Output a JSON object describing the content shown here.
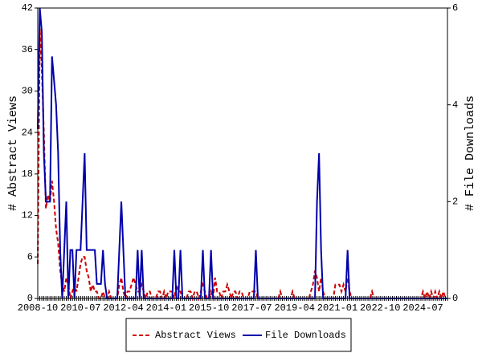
{
  "chart_data": {
    "type": "line",
    "y_label": "# Abstract Views",
    "y2_label": "# File Downloads",
    "categories": [
      "2008-10",
      null,
      null,
      null,
      null,
      null,
      null,
      null,
      null,
      null,
      null,
      null,
      null,
      null,
      null,
      null,
      null,
      null,
      null,
      null,
      null,
      "2010-07",
      null,
      null,
      null,
      null,
      null,
      null,
      null,
      null,
      null,
      null,
      null,
      null,
      null,
      null,
      null,
      null,
      null,
      null,
      null,
      null,
      "2012-04",
      null,
      null,
      null,
      null,
      null,
      null,
      null,
      null,
      null,
      null,
      null,
      null,
      null,
      null,
      null,
      null,
      null,
      null,
      null,
      null,
      "2014-01",
      null,
      null,
      null,
      null,
      null,
      null,
      null,
      null,
      null,
      null,
      null,
      null,
      null,
      null,
      null,
      null,
      null,
      null,
      null,
      null,
      "2015-10",
      null,
      null,
      null,
      null,
      null,
      null,
      null,
      null,
      null,
      null,
      null,
      null,
      null,
      null,
      null,
      null,
      null,
      null,
      null,
      null,
      "2017-07",
      null,
      null,
      null,
      null,
      null,
      null,
      null,
      null,
      null,
      null,
      null,
      null,
      null,
      null,
      null,
      null,
      null,
      null,
      null,
      null,
      "2019-04",
      null,
      null,
      null,
      null,
      null,
      null,
      null,
      null,
      null,
      null,
      null,
      null,
      null,
      null,
      null,
      null,
      null,
      null,
      null,
      null,
      "2021-01",
      null,
      null,
      null,
      null,
      null,
      null,
      null,
      null,
      null,
      null,
      null,
      null,
      null,
      null,
      null,
      null,
      null,
      null,
      null,
      null,
      "2022-10",
      null,
      null,
      null,
      null,
      null,
      null,
      null,
      null,
      null,
      null,
      null,
      null,
      null,
      null,
      null,
      null,
      null,
      null,
      null,
      null,
      "2024-07",
      null,
      null,
      null,
      null,
      null,
      null,
      null,
      null,
      null,
      null,
      null,
      null
    ],
    "series": [
      {
        "name": "Abstract Views",
        "color": "#cc0000",
        "dash": true,
        "values": [
          5,
          39,
          33,
          24,
          13,
          15,
          14,
          17,
          14,
          10,
          8,
          4,
          2,
          1,
          3,
          2,
          0,
          1,
          2,
          1,
          3,
          5,
          6,
          6,
          4,
          3,
          1,
          2,
          1,
          1,
          0,
          0,
          1,
          0,
          0,
          1,
          0,
          0,
          0,
          0,
          2,
          3,
          1,
          0,
          1,
          1,
          2,
          3,
          2,
          1,
          1,
          2,
          1,
          0,
          1,
          1,
          0,
          0,
          0,
          1,
          1,
          0,
          1,
          0,
          1,
          1,
          1,
          0,
          2,
          1,
          1,
          0,
          0,
          0,
          1,
          1,
          0,
          1,
          1,
          0,
          1,
          2,
          1,
          0,
          0,
          1,
          0,
          3,
          1,
          1,
          0,
          1,
          1,
          2,
          1,
          0,
          1,
          1,
          0,
          1,
          1,
          0,
          0,
          0,
          1,
          1,
          1,
          1,
          0,
          0,
          0,
          0,
          0,
          0,
          0,
          0,
          0,
          0,
          0,
          1,
          0,
          0,
          0,
          0,
          0,
          1,
          0,
          0,
          0,
          0,
          0,
          0,
          0,
          0,
          1,
          2,
          4,
          3,
          1,
          3,
          1,
          0,
          0,
          0,
          0,
          0,
          2,
          2,
          2,
          1,
          2,
          1,
          3,
          1,
          0,
          0,
          0,
          0,
          0,
          0,
          0,
          0,
          0,
          0,
          1,
          0,
          0,
          0,
          0,
          0,
          0,
          0,
          0,
          0,
          0,
          0,
          0,
          0,
          0,
          0,
          0,
          0,
          0,
          0,
          0,
          0,
          0,
          0,
          0,
          1,
          0,
          1,
          0,
          1,
          0,
          1,
          0,
          1,
          0,
          1,
          0,
          0
        ]
      },
      {
        "name": "File Downloads",
        "color": "#0000aa",
        "dash": false,
        "axis": "y2",
        "values": [
          3.5,
          6,
          5.5,
          3,
          2,
          2,
          2,
          5,
          4.5,
          4,
          3,
          1,
          0,
          1,
          2,
          0,
          1,
          1,
          0,
          1,
          1,
          1,
          2,
          3,
          1,
          1,
          1,
          1,
          1,
          0.3,
          0.3,
          0.3,
          1,
          0.3,
          0,
          0,
          0,
          0,
          0,
          0,
          1,
          2,
          1,
          0,
          0,
          0,
          0,
          0,
          0,
          1,
          0,
          1,
          0,
          0,
          0,
          0,
          0,
          0,
          0,
          0,
          0,
          0,
          0,
          0,
          0,
          0,
          0,
          1,
          0,
          0,
          1,
          0,
          0,
          0,
          0,
          0,
          0,
          0,
          0,
          0,
          0,
          1,
          0,
          0,
          0,
          1,
          0,
          0,
          0,
          0,
          0,
          0,
          0,
          0,
          0,
          0,
          0,
          0,
          0,
          0,
          0,
          0,
          0,
          0,
          0,
          0,
          0,
          1,
          0,
          0,
          0,
          0,
          0,
          0,
          0,
          0,
          0,
          0,
          0,
          0,
          0,
          0,
          0,
          0,
          0,
          0,
          0,
          0,
          0,
          0,
          0,
          0,
          0,
          0,
          0,
          0,
          0,
          2,
          3,
          1,
          0,
          0,
          0,
          0,
          0,
          0,
          0,
          0,
          0,
          0,
          0,
          0,
          1,
          0,
          0,
          0,
          0,
          0,
          0,
          0,
          0,
          0,
          0,
          0,
          0,
          0,
          0,
          0,
          0,
          0,
          0,
          0,
          0,
          0,
          0,
          0,
          0,
          0,
          0,
          0,
          0,
          0,
          0,
          0,
          0,
          0,
          0,
          0,
          0,
          0,
          0,
          0,
          0,
          0,
          0,
          0,
          0,
          0,
          0,
          0,
          0,
          0
        ]
      }
    ],
    "ylim": [
      0,
      42
    ],
    "yticks": [
      0,
      6,
      12,
      18,
      24,
      30,
      36,
      42
    ],
    "y2lim": [
      0,
      6
    ],
    "y2ticks": [
      0,
      2,
      4,
      6
    ]
  }
}
